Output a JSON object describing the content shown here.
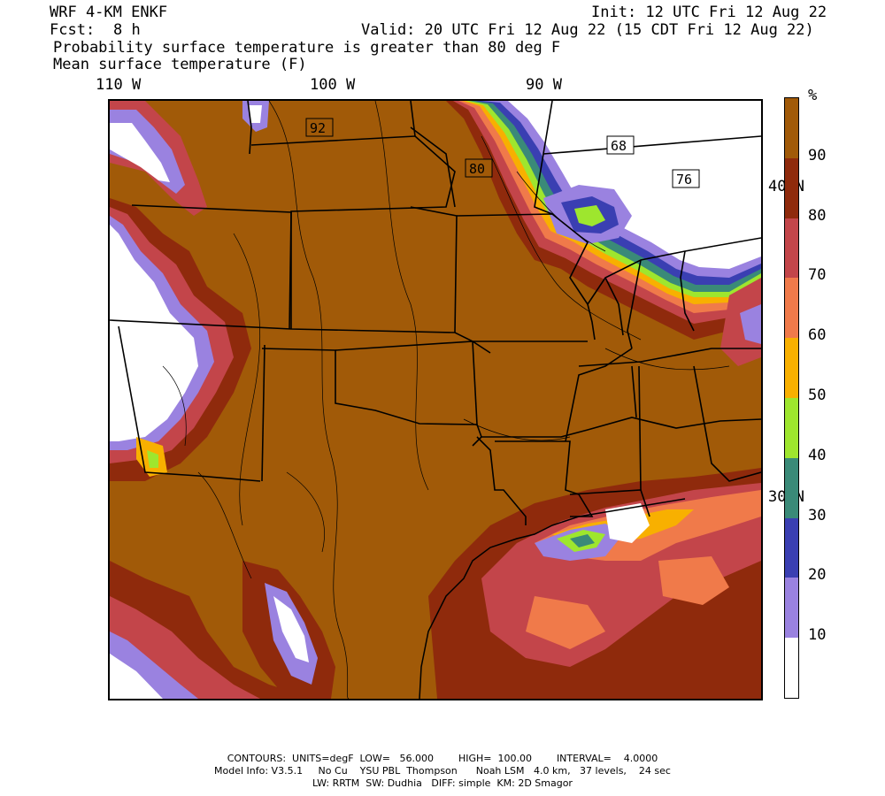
{
  "header": {
    "model": "WRF 4-KM ENKF",
    "init": "Init: 12 UTC Fri 12 Aug 22",
    "fcst_label": "Fcst:",
    "fcst_value": "8 h",
    "valid": "Valid: 20 UTC Fri 12 Aug 22 (15 CDT Fri 12 Aug 22)",
    "field1": "Probability surface temperature is greater than 80 deg F",
    "field2": "Mean surface temperature (F)"
  },
  "axes": {
    "lon_labels": [
      "110 W",
      "100 W",
      "90 W"
    ],
    "lat_labels": [
      "40 N",
      "30 N"
    ]
  },
  "contour_labels": [
    "92",
    "80",
    "68",
    "76"
  ],
  "legend": {
    "unit": "%",
    "ticks": [
      "90",
      "80",
      "70",
      "60",
      "50",
      "40",
      "30",
      "20",
      "10"
    ],
    "colors": [
      {
        "range": "90-100",
        "color": "#a15a08"
      },
      {
        "range": "80-90",
        "color": "#8f2a0c"
      },
      {
        "range": "70-80",
        "color": "#c3454a"
      },
      {
        "range": "60-70",
        "color": "#f07a4a"
      },
      {
        "range": "50-60",
        "color": "#f8b000"
      },
      {
        "range": "40-50",
        "color": "#9ee62e"
      },
      {
        "range": "30-40",
        "color": "#3a8a78"
      },
      {
        "range": "20-30",
        "color": "#3a3fb2"
      },
      {
        "range": "10-20",
        "color": "#9a82e0"
      },
      {
        "range": "0-10",
        "color": "#ffffff"
      }
    ]
  },
  "footer": {
    "line1": "CONTOURS:  UNITS=degF  LOW=   56.000        HIGH=  100.00        INTERVAL=    4.0000",
    "line2": "Model Info: V3.5.1     No Cu    YSU PBL  Thompson      Noah LSM   4.0 km,   37 levels,    24 sec",
    "line3": "LW: RRTM  SW: Dudhia   DIFF: simple  KM: 2D Smagor"
  }
}
